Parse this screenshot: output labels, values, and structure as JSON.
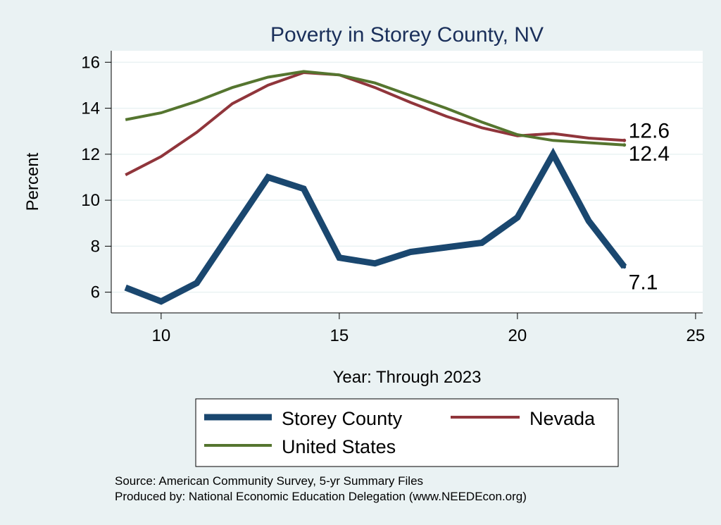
{
  "chart_data": {
    "type": "line",
    "title": "Poverty in Storey County, NV",
    "xlabel": "Year: Through 2023",
    "ylabel": "Percent",
    "xlim": [
      8.6,
      25.2
    ],
    "ylim": [
      5.1,
      16.5
    ],
    "xticks": [
      10,
      15,
      20,
      25
    ],
    "yticks": [
      6,
      8,
      10,
      12,
      14,
      16
    ],
    "grid": true,
    "legend_position": "bottom",
    "x": [
      9,
      10,
      11,
      12,
      13,
      14,
      15,
      16,
      17,
      18,
      19,
      20,
      21,
      22,
      23
    ],
    "series": [
      {
        "name": "Storey County",
        "color": "#1a476f",
        "values": [
          6.2,
          5.6,
          6.4,
          8.7,
          11.0,
          10.5,
          7.5,
          7.25,
          7.75,
          7.95,
          8.15,
          9.25,
          12.0,
          9.1,
          7.1
        ],
        "end_label": "7.1"
      },
      {
        "name": "Nevada",
        "color": "#90353b",
        "values": [
          11.1,
          11.9,
          12.95,
          14.2,
          15.0,
          15.55,
          15.45,
          14.9,
          14.25,
          13.65,
          13.15,
          12.8,
          12.9,
          12.7,
          12.6
        ],
        "end_label": "12.6"
      },
      {
        "name": "United States",
        "color": "#55752f",
        "values": [
          13.5,
          13.8,
          14.3,
          14.9,
          15.35,
          15.6,
          15.45,
          15.1,
          14.55,
          14.0,
          13.4,
          12.85,
          12.6,
          12.5,
          12.4
        ],
        "end_label": "12.4"
      }
    ]
  },
  "source": {
    "line1": "Source: American Community Survey, 5-yr Summary Files",
    "line2": "Produced by: National Economic Education Delegation (www.NEEDEcon.org)"
  }
}
